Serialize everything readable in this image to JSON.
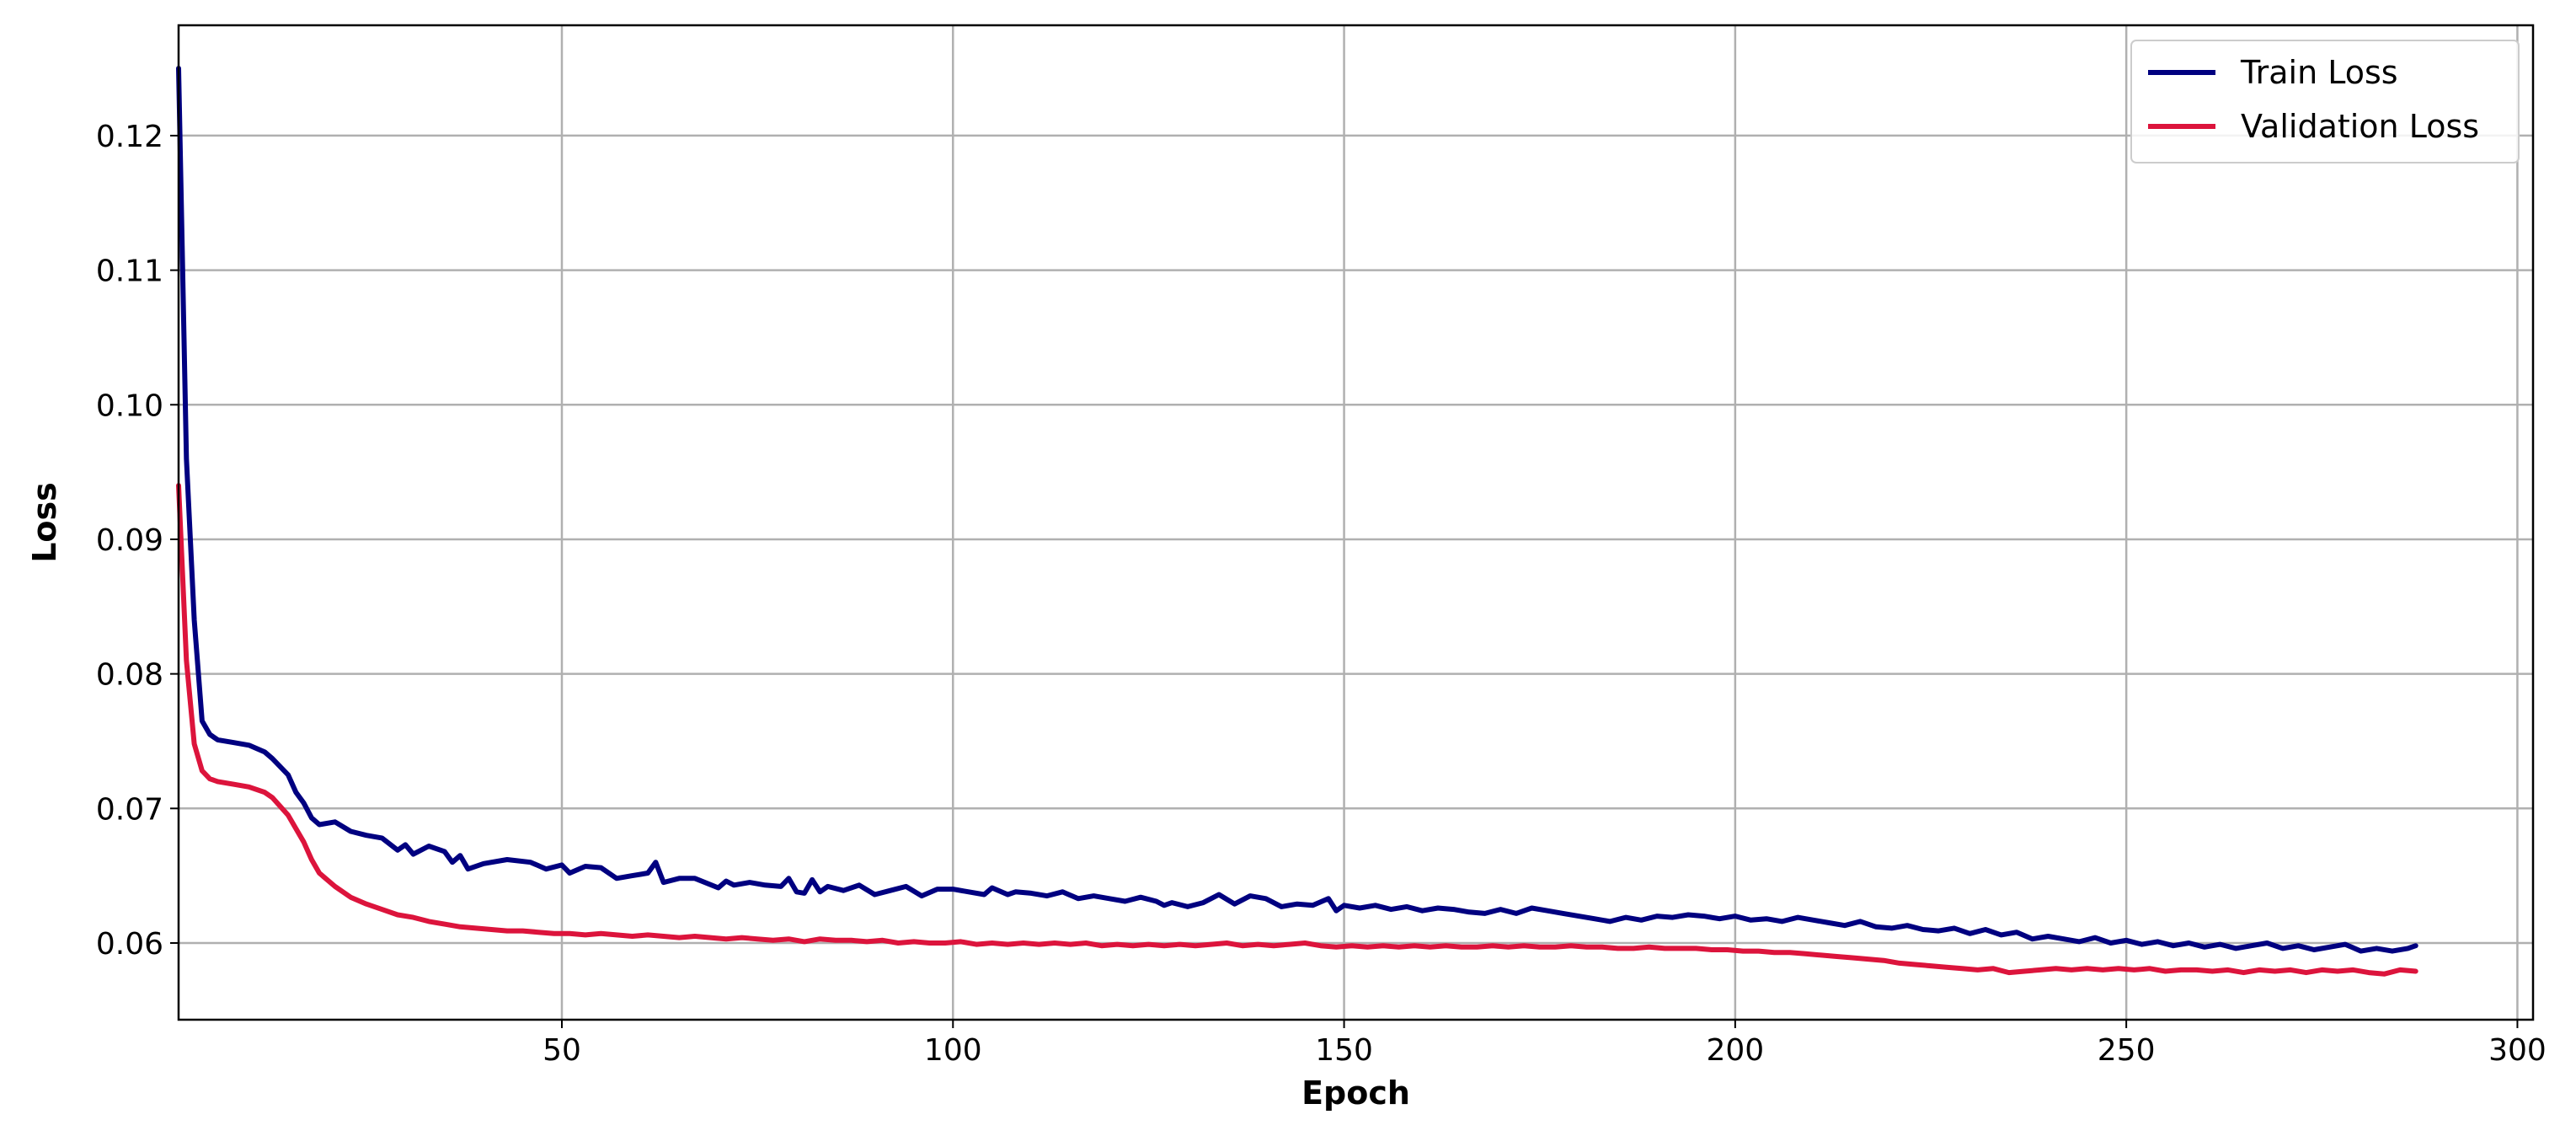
{
  "chart_data": {
    "type": "line",
    "title": "",
    "xlabel": "Epoch",
    "ylabel": "Loss",
    "xlim": [
      1,
      302
    ],
    "ylim": [
      0.0543,
      0.1282
    ],
    "xticks": [
      50,
      100,
      150,
      200,
      250,
      300
    ],
    "xtick_labels": [
      "50",
      "100",
      "150",
      "200",
      "250",
      "300"
    ],
    "yticks": [
      0.06,
      0.07,
      0.08,
      0.09,
      0.1,
      0.11,
      0.12
    ],
    "ytick_labels": [
      "0.06",
      "0.07",
      "0.08",
      "0.09",
      "0.10",
      "0.11",
      "0.12"
    ],
    "grid": true,
    "legend_position": "top-right",
    "series": [
      {
        "name": "Train Loss",
        "color": "#000080",
        "points": [
          [
            1,
            0.125
          ],
          [
            2,
            0.096
          ],
          [
            3,
            0.084
          ],
          [
            4,
            0.0765
          ],
          [
            5,
            0.0755
          ],
          [
            6,
            0.0751
          ],
          [
            8,
            0.0749
          ],
          [
            10,
            0.0747
          ],
          [
            12,
            0.0742
          ],
          [
            13,
            0.0737
          ],
          [
            15,
            0.0725
          ],
          [
            16,
            0.0712
          ],
          [
            17,
            0.0704
          ],
          [
            18,
            0.0693
          ],
          [
            19,
            0.0688
          ],
          [
            21,
            0.069
          ],
          [
            23,
            0.0683
          ],
          [
            25,
            0.068
          ],
          [
            27,
            0.0678
          ],
          [
            29,
            0.0669
          ],
          [
            30,
            0.0673
          ],
          [
            31,
            0.0666
          ],
          [
            33,
            0.0672
          ],
          [
            35,
            0.0668
          ],
          [
            36,
            0.066
          ],
          [
            37,
            0.0665
          ],
          [
            38,
            0.0655
          ],
          [
            40,
            0.0659
          ],
          [
            43,
            0.0662
          ],
          [
            46,
            0.066
          ],
          [
            48,
            0.0655
          ],
          [
            50,
            0.0658
          ],
          [
            51,
            0.0652
          ],
          [
            53,
            0.0657
          ],
          [
            55,
            0.0656
          ],
          [
            57,
            0.0648
          ],
          [
            59,
            0.065
          ],
          [
            61,
            0.0652
          ],
          [
            62,
            0.066
          ],
          [
            63,
            0.0645
          ],
          [
            65,
            0.0648
          ],
          [
            67,
            0.0648
          ],
          [
            70,
            0.0641
          ],
          [
            71,
            0.0646
          ],
          [
            72,
            0.0643
          ],
          [
            74,
            0.0645
          ],
          [
            76,
            0.0643
          ],
          [
            78,
            0.0642
          ],
          [
            79,
            0.0648
          ],
          [
            80,
            0.0638
          ],
          [
            81,
            0.0637
          ],
          [
            82,
            0.0647
          ],
          [
            83,
            0.0638
          ],
          [
            84,
            0.0642
          ],
          [
            86,
            0.0639
          ],
          [
            88,
            0.0643
          ],
          [
            90,
            0.0636
          ],
          [
            92,
            0.0639
          ],
          [
            94,
            0.0642
          ],
          [
            96,
            0.0635
          ],
          [
            98,
            0.064
          ],
          [
            100,
            0.064
          ],
          [
            102,
            0.0638
          ],
          [
            104,
            0.0636
          ],
          [
            105,
            0.0641
          ],
          [
            107,
            0.0636
          ],
          [
            108,
            0.0638
          ],
          [
            110,
            0.0637
          ],
          [
            112,
            0.0635
          ],
          [
            114,
            0.0638
          ],
          [
            116,
            0.0633
          ],
          [
            118,
            0.0635
          ],
          [
            120,
            0.0633
          ],
          [
            122,
            0.0631
          ],
          [
            124,
            0.0634
          ],
          [
            126,
            0.0631
          ],
          [
            127,
            0.0628
          ],
          [
            128,
            0.063
          ],
          [
            130,
            0.0627
          ],
          [
            132,
            0.063
          ],
          [
            134,
            0.0636
          ],
          [
            136,
            0.0629
          ],
          [
            138,
            0.0635
          ],
          [
            140,
            0.0633
          ],
          [
            142,
            0.0627
          ],
          [
            144,
            0.0629
          ],
          [
            146,
            0.0628
          ],
          [
            148,
            0.0633
          ],
          [
            149,
            0.0624
          ],
          [
            150,
            0.0628
          ],
          [
            152,
            0.0626
          ],
          [
            154,
            0.0628
          ],
          [
            156,
            0.0625
          ],
          [
            158,
            0.0627
          ],
          [
            160,
            0.0624
          ],
          [
            162,
            0.0626
          ],
          [
            164,
            0.0625
          ],
          [
            166,
            0.0623
          ],
          [
            168,
            0.0622
          ],
          [
            170,
            0.0625
          ],
          [
            172,
            0.0622
          ],
          [
            174,
            0.0626
          ],
          [
            176,
            0.0624
          ],
          [
            178,
            0.0622
          ],
          [
            180,
            0.062
          ],
          [
            182,
            0.0618
          ],
          [
            184,
            0.0616
          ],
          [
            186,
            0.0619
          ],
          [
            188,
            0.0617
          ],
          [
            190,
            0.062
          ],
          [
            192,
            0.0619
          ],
          [
            194,
            0.0621
          ],
          [
            196,
            0.062
          ],
          [
            198,
            0.0618
          ],
          [
            200,
            0.062
          ],
          [
            202,
            0.0617
          ],
          [
            204,
            0.0618
          ],
          [
            206,
            0.0616
          ],
          [
            208,
            0.0619
          ],
          [
            210,
            0.0617
          ],
          [
            212,
            0.0615
          ],
          [
            214,
            0.0613
          ],
          [
            216,
            0.0616
          ],
          [
            218,
            0.0612
          ],
          [
            220,
            0.0611
          ],
          [
            222,
            0.0613
          ],
          [
            224,
            0.061
          ],
          [
            226,
            0.0609
          ],
          [
            228,
            0.0611
          ],
          [
            230,
            0.0607
          ],
          [
            232,
            0.061
          ],
          [
            234,
            0.0606
          ],
          [
            236,
            0.0608
          ],
          [
            238,
            0.0603
          ],
          [
            240,
            0.0605
          ],
          [
            242,
            0.0603
          ],
          [
            244,
            0.0601
          ],
          [
            246,
            0.0604
          ],
          [
            248,
            0.06
          ],
          [
            250,
            0.0602
          ],
          [
            252,
            0.0599
          ],
          [
            254,
            0.0601
          ],
          [
            256,
            0.0598
          ],
          [
            258,
            0.06
          ],
          [
            260,
            0.0597
          ],
          [
            262,
            0.0599
          ],
          [
            264,
            0.0596
          ],
          [
            266,
            0.0598
          ],
          [
            268,
            0.06
          ],
          [
            270,
            0.0596
          ],
          [
            272,
            0.0598
          ],
          [
            274,
            0.0595
          ],
          [
            276,
            0.0597
          ],
          [
            278,
            0.0599
          ],
          [
            280,
            0.0594
          ],
          [
            282,
            0.0596
          ],
          [
            284,
            0.0594
          ],
          [
            286,
            0.0596
          ],
          [
            287,
            0.0598
          ]
        ]
      },
      {
        "name": "Validation Loss",
        "color": "#DC143C",
        "points": [
          [
            1,
            0.094
          ],
          [
            2,
            0.081
          ],
          [
            3,
            0.0748
          ],
          [
            4,
            0.0728
          ],
          [
            5,
            0.0722
          ],
          [
            6,
            0.072
          ],
          [
            8,
            0.0718
          ],
          [
            10,
            0.0716
          ],
          [
            12,
            0.0712
          ],
          [
            13,
            0.0708
          ],
          [
            15,
            0.0695
          ],
          [
            16,
            0.0685
          ],
          [
            17,
            0.0675
          ],
          [
            18,
            0.0662
          ],
          [
            19,
            0.0652
          ],
          [
            21,
            0.0642
          ],
          [
            23,
            0.0634
          ],
          [
            25,
            0.0629
          ],
          [
            27,
            0.0625
          ],
          [
            29,
            0.0621
          ],
          [
            31,
            0.0619
          ],
          [
            33,
            0.0616
          ],
          [
            35,
            0.0614
          ],
          [
            37,
            0.0612
          ],
          [
            39,
            0.0611
          ],
          [
            41,
            0.061
          ],
          [
            43,
            0.0609
          ],
          [
            45,
            0.0609
          ],
          [
            47,
            0.0608
          ],
          [
            49,
            0.0607
          ],
          [
            51,
            0.0607
          ],
          [
            53,
            0.0606
          ],
          [
            55,
            0.0607
          ],
          [
            57,
            0.0606
          ],
          [
            59,
            0.0605
          ],
          [
            61,
            0.0606
          ],
          [
            63,
            0.0605
          ],
          [
            65,
            0.0604
          ],
          [
            67,
            0.0605
          ],
          [
            69,
            0.0604
          ],
          [
            71,
            0.0603
          ],
          [
            73,
            0.0604
          ],
          [
            75,
            0.0603
          ],
          [
            77,
            0.0602
          ],
          [
            79,
            0.0603
          ],
          [
            81,
            0.0601
          ],
          [
            83,
            0.0603
          ],
          [
            85,
            0.0602
          ],
          [
            87,
            0.0602
          ],
          [
            89,
            0.0601
          ],
          [
            91,
            0.0602
          ],
          [
            93,
            0.06
          ],
          [
            95,
            0.0601
          ],
          [
            97,
            0.06
          ],
          [
            99,
            0.06
          ],
          [
            101,
            0.0601
          ],
          [
            103,
            0.0599
          ],
          [
            105,
            0.06
          ],
          [
            107,
            0.0599
          ],
          [
            109,
            0.06
          ],
          [
            111,
            0.0599
          ],
          [
            113,
            0.06
          ],
          [
            115,
            0.0599
          ],
          [
            117,
            0.06
          ],
          [
            119,
            0.0598
          ],
          [
            121,
            0.0599
          ],
          [
            123,
            0.0598
          ],
          [
            125,
            0.0599
          ],
          [
            127,
            0.0598
          ],
          [
            129,
            0.0599
          ],
          [
            131,
            0.0598
          ],
          [
            133,
            0.0599
          ],
          [
            135,
            0.06
          ],
          [
            137,
            0.0598
          ],
          [
            139,
            0.0599
          ],
          [
            141,
            0.0598
          ],
          [
            143,
            0.0599
          ],
          [
            145,
            0.06
          ],
          [
            147,
            0.0598
          ],
          [
            149,
            0.0597
          ],
          [
            151,
            0.0598
          ],
          [
            153,
            0.0597
          ],
          [
            155,
            0.0598
          ],
          [
            157,
            0.0597
          ],
          [
            159,
            0.0598
          ],
          [
            161,
            0.0597
          ],
          [
            163,
            0.0598
          ],
          [
            165,
            0.0597
          ],
          [
            167,
            0.0597
          ],
          [
            169,
            0.0598
          ],
          [
            171,
            0.0597
          ],
          [
            173,
            0.0598
          ],
          [
            175,
            0.0597
          ],
          [
            177,
            0.0597
          ],
          [
            179,
            0.0598
          ],
          [
            181,
            0.0597
          ],
          [
            183,
            0.0597
          ],
          [
            185,
            0.0596
          ],
          [
            187,
            0.0596
          ],
          [
            189,
            0.0597
          ],
          [
            191,
            0.0596
          ],
          [
            193,
            0.0596
          ],
          [
            195,
            0.0596
          ],
          [
            197,
            0.0595
          ],
          [
            199,
            0.0595
          ],
          [
            201,
            0.0594
          ],
          [
            203,
            0.0594
          ],
          [
            205,
            0.0593
          ],
          [
            207,
            0.0593
          ],
          [
            209,
            0.0592
          ],
          [
            211,
            0.0591
          ],
          [
            213,
            0.059
          ],
          [
            215,
            0.0589
          ],
          [
            217,
            0.0588
          ],
          [
            219,
            0.0587
          ],
          [
            221,
            0.0585
          ],
          [
            223,
            0.0584
          ],
          [
            225,
            0.0583
          ],
          [
            227,
            0.0582
          ],
          [
            229,
            0.0581
          ],
          [
            231,
            0.058
          ],
          [
            233,
            0.0581
          ],
          [
            235,
            0.0578
          ],
          [
            237,
            0.0579
          ],
          [
            239,
            0.058
          ],
          [
            241,
            0.0581
          ],
          [
            243,
            0.058
          ],
          [
            245,
            0.0581
          ],
          [
            247,
            0.058
          ],
          [
            249,
            0.0581
          ],
          [
            251,
            0.058
          ],
          [
            253,
            0.0581
          ],
          [
            255,
            0.0579
          ],
          [
            257,
            0.058
          ],
          [
            259,
            0.058
          ],
          [
            261,
            0.0579
          ],
          [
            263,
            0.058
          ],
          [
            265,
            0.0578
          ],
          [
            267,
            0.058
          ],
          [
            269,
            0.0579
          ],
          [
            271,
            0.058
          ],
          [
            273,
            0.0578
          ],
          [
            275,
            0.058
          ],
          [
            277,
            0.0579
          ],
          [
            279,
            0.058
          ],
          [
            281,
            0.0578
          ],
          [
            283,
            0.0577
          ],
          [
            285,
            0.058
          ],
          [
            287,
            0.0579
          ]
        ]
      }
    ]
  }
}
